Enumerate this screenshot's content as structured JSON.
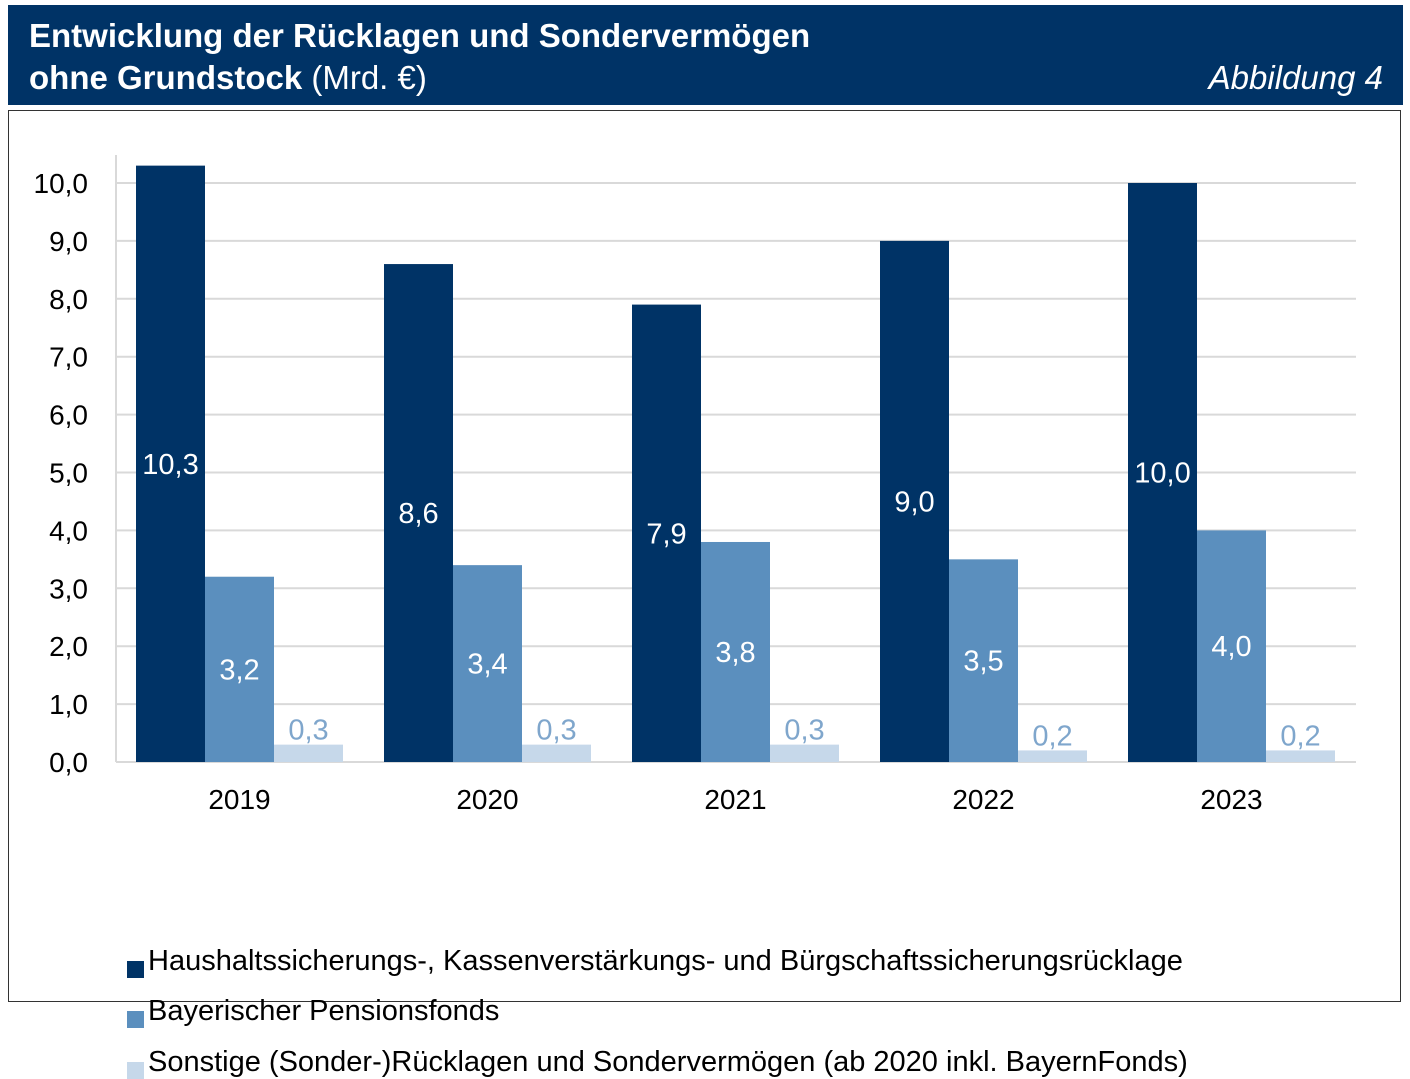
{
  "header": {
    "title_line1": "Entwicklung der Rücklagen und Sondervermögen",
    "title_line2_bold": "ohne Grundstock",
    "title_line2_unit": " (Mrd. €)",
    "figure_label": "Abbildung 4"
  },
  "colors": {
    "header_bg": "#003366",
    "series": [
      "#003366",
      "#5B8FBE",
      "#C6D8EA"
    ],
    "label_light": "#7FA6CC",
    "grid": "#D9D9D9"
  },
  "chart_data": {
    "type": "bar",
    "title": "Entwicklung der Rücklagen und Sondervermögen ohne Grundstock (Mrd. €)",
    "categories": [
      "2019",
      "2020",
      "2021",
      "2022",
      "2023"
    ],
    "series": [
      {
        "name": "Haushaltssicherungs-, Kassenverstärkungs- und Bürgschaftssicherungsrücklage",
        "values": [
          10.3,
          8.6,
          7.9,
          9.0,
          10.0
        ],
        "labels": [
          "10,3",
          "8,6",
          "7,9",
          "9,0",
          "10,0"
        ]
      },
      {
        "name": "Bayerischer Pensionsfonds",
        "values": [
          3.2,
          3.4,
          3.8,
          3.5,
          4.0
        ],
        "labels": [
          "3,2",
          "3,4",
          "3,8",
          "3,5",
          "4,0"
        ]
      },
      {
        "name": "Sonstige (Sonder-)Rücklagen und Sondervermögen (ab 2020 inkl. BayernFonds)",
        "values": [
          0.3,
          0.3,
          0.3,
          0.2,
          0.2
        ],
        "labels": [
          "0,3",
          "0,3",
          "0,3",
          "0,2",
          "0,2"
        ]
      }
    ],
    "ylim": [
      0,
      10
    ],
    "yticks": [
      "0,0",
      "1,0",
      "2,0",
      "3,0",
      "4,0",
      "5,0",
      "6,0",
      "7,0",
      "8,0",
      "9,0",
      "10,0"
    ],
    "grid": true,
    "legend_position": "bottom",
    "xlabel": "",
    "ylabel": ""
  }
}
